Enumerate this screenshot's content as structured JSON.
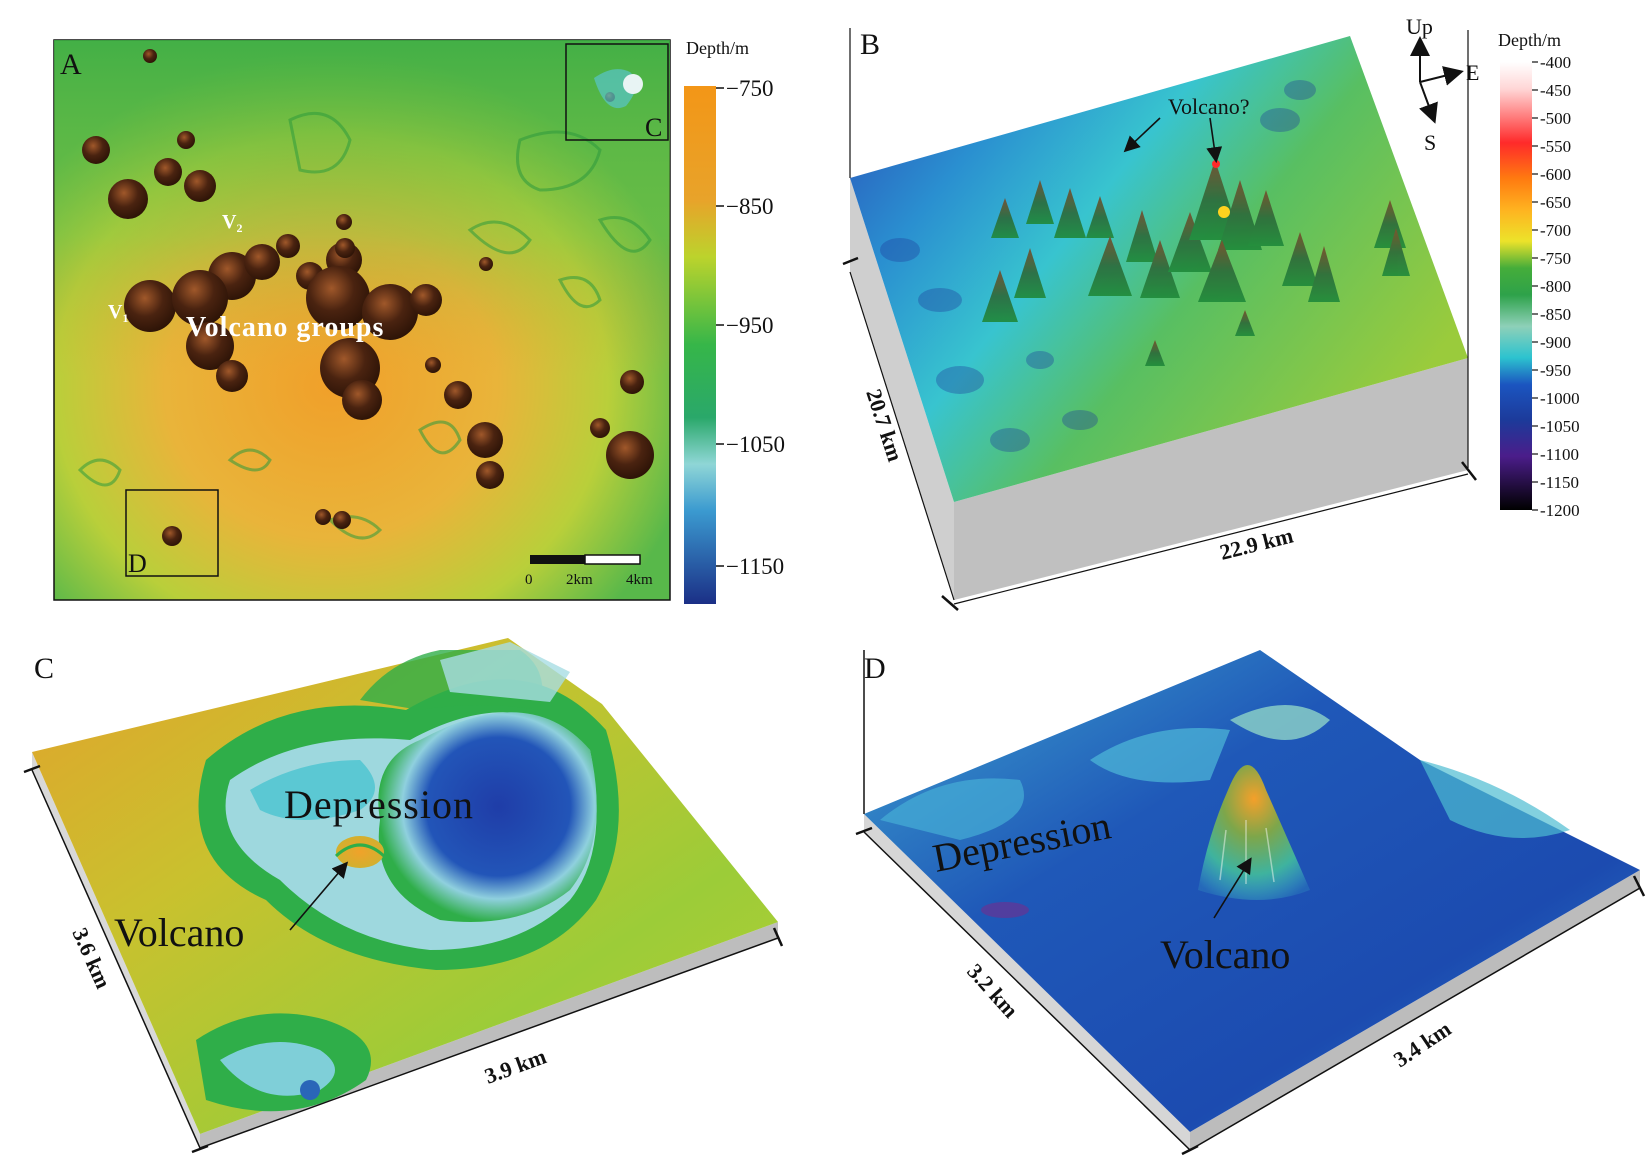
{
  "panels": {
    "A": {
      "letter": "A",
      "label_v1": "V",
      "label_v1_sub": "1",
      "label_v2": "V",
      "label_v2_sub": "2",
      "label_groups": "Volcano groups",
      "inset_c": "C",
      "inset_d": "D",
      "scalebar": {
        "tick_0": "0",
        "tick_1": "2km",
        "tick_2": "4km"
      },
      "colorbar": {
        "title": "Depth/m",
        "ticks": [
          "−750",
          "−850",
          "−950",
          "−1050",
          "−1150"
        ],
        "colors": [
          "#f29a1a",
          "#c9d42a",
          "#2fb64a",
          "#63c6cf",
          "#1f3a8f"
        ]
      }
    },
    "B": {
      "letter": "B",
      "annotation": "Volcano?",
      "compass": {
        "up": "Up",
        "east": "E",
        "south": "S"
      },
      "dim_width": "22.9 km",
      "dim_depth": "20.7 km",
      "colorbar": {
        "title": "Depth/m",
        "ticks": [
          "-400",
          "-450",
          "-500",
          "-550",
          "-600",
          "-650",
          "-700",
          "-750",
          "-800",
          "-850",
          "-900",
          "-950",
          "-1000",
          "-1050",
          "-1100",
          "-1150",
          "-1200"
        ],
        "colors": [
          "#ffffff",
          "#ff2020",
          "#ff8a00",
          "#f2e52a",
          "#2ba53a",
          "#2fc7c9",
          "#1d4fb8",
          "#4a1f8a",
          "#000000"
        ]
      }
    },
    "C": {
      "letter": "C",
      "label_depression": "Depression",
      "label_volcano": "Volcano",
      "dim_width": "3.9 km",
      "dim_depth": "3.6 km"
    },
    "D": {
      "letter": "D",
      "label_depression": "Depression",
      "label_volcano": "Volcano",
      "dim_width": "3.4 km",
      "dim_depth": "3.2 km"
    }
  }
}
